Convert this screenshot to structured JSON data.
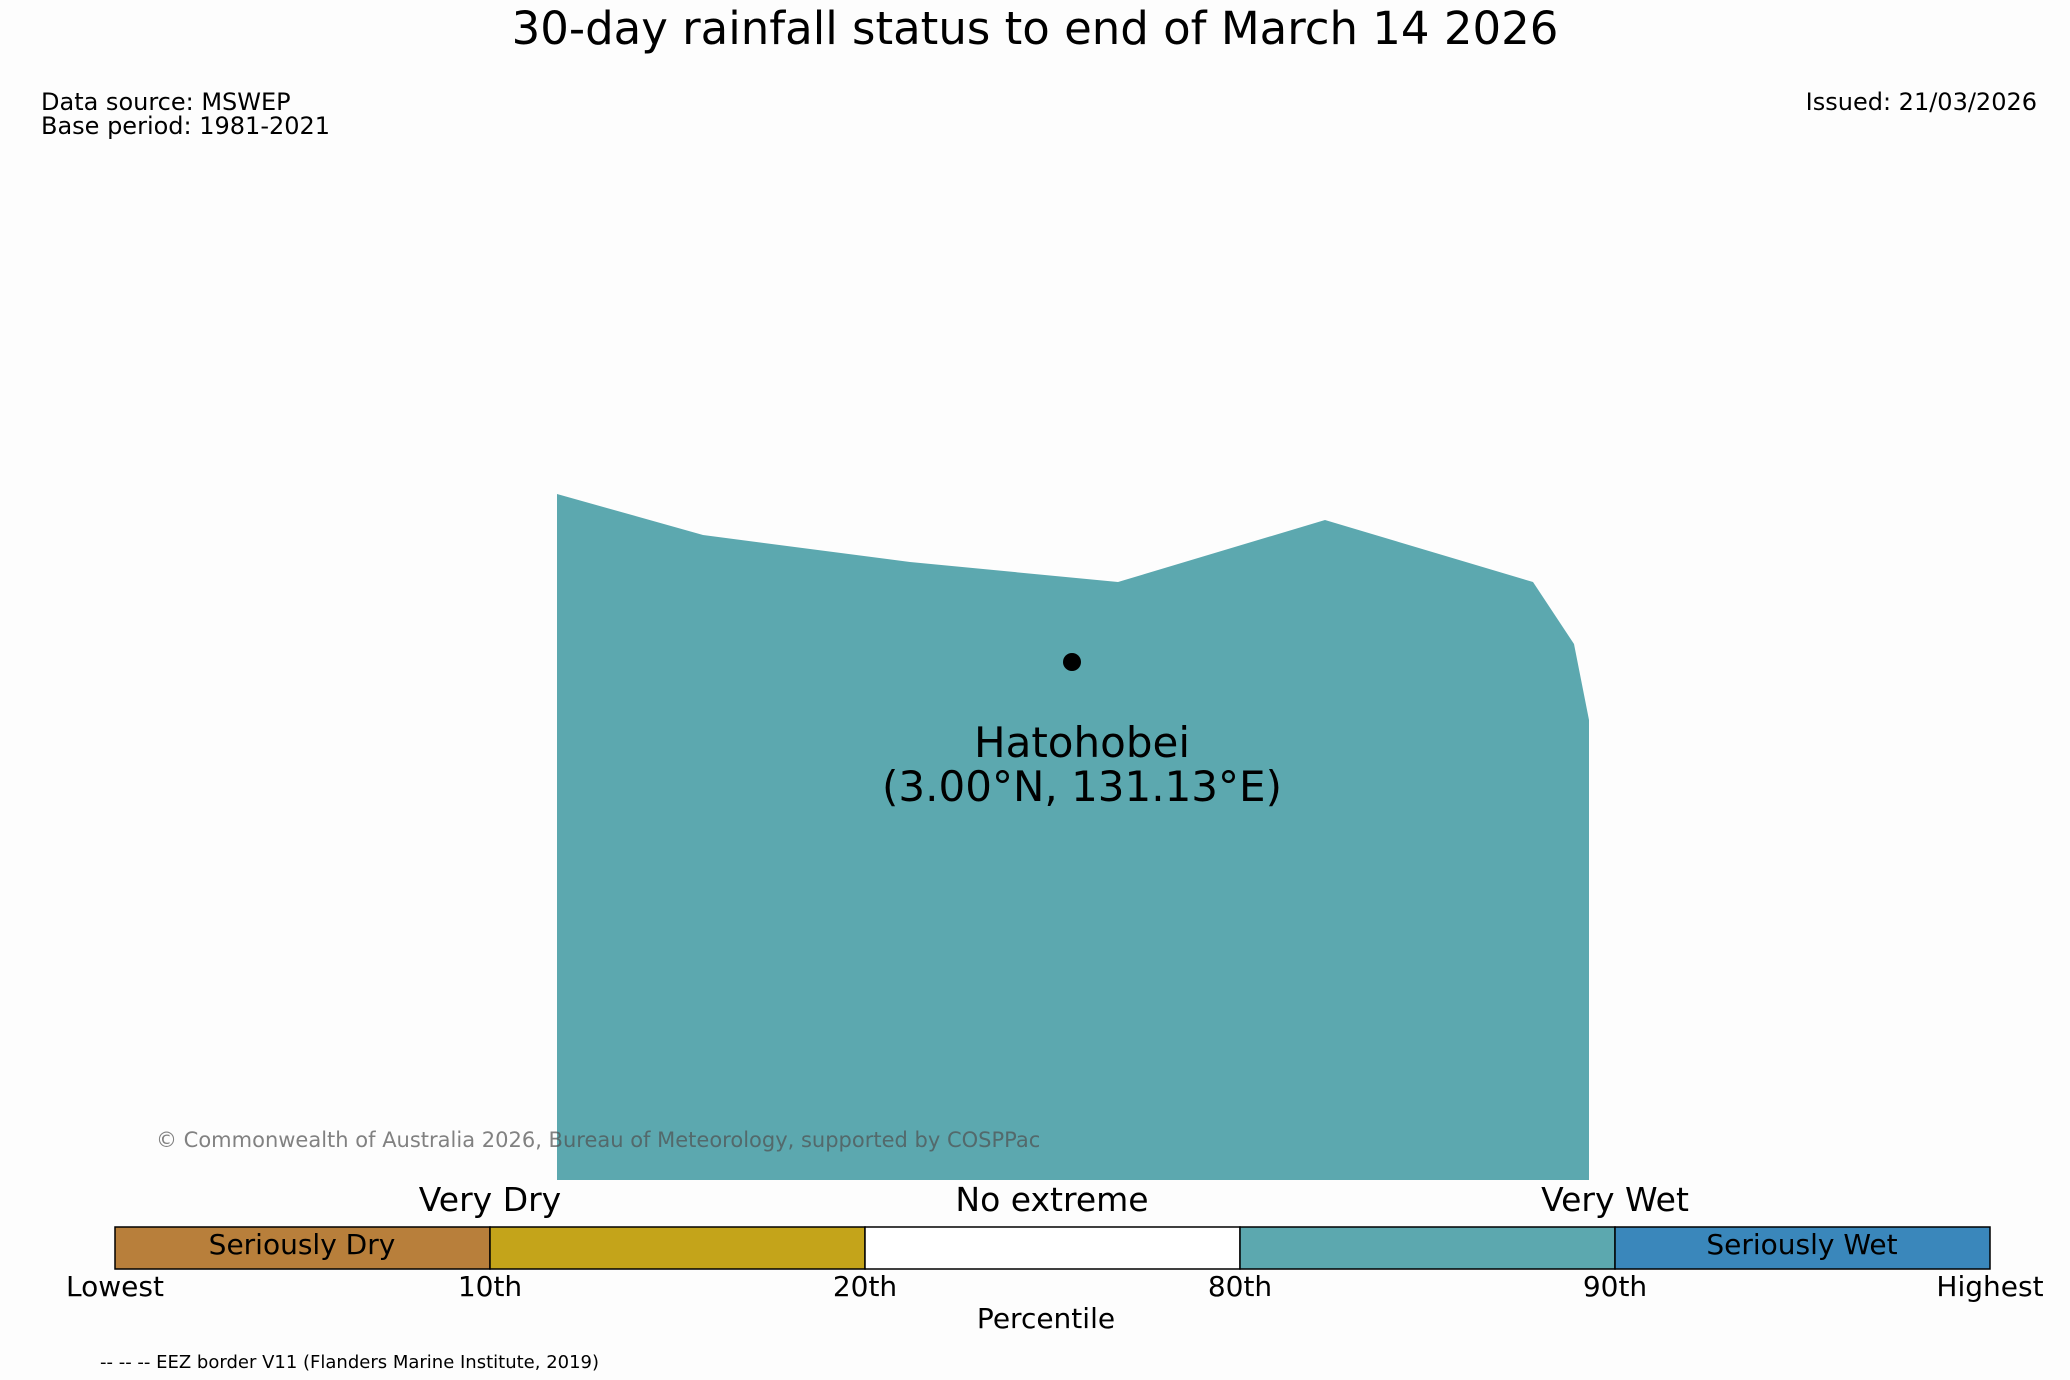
{
  "title": "30-day rainfall status to end of March 14 2026",
  "data_source": "Data source: MSWEP",
  "base_period": "Base period: 1981-2021",
  "issued": "Issued: 21/03/2026",
  "copyright": "© Commonwealth of Australia 2026, Bureau of Meteorology, supported by COSPPac",
  "eez_note": "-- -- -- EEZ border V11 (Flanders Marine Institute, 2019)",
  "location": {
    "name": "Hatohobei",
    "coords": "(3.00°N, 131.13°E)",
    "status_color": "#5ca8af"
  },
  "legend": {
    "categories": [
      "Very Dry",
      "No extreme",
      "Very Wet"
    ],
    "segments": [
      {
        "label": "Seriously Dry",
        "color": "#b87f3b"
      },
      {
        "label": "",
        "color": "#c4a41a"
      },
      {
        "label": "",
        "color": "#ffffff"
      },
      {
        "label": "",
        "color": "#5ca8af"
      },
      {
        "label": "Seriously Wet",
        "color": "#3a87bb"
      }
    ],
    "ticks": [
      "Lowest",
      "10th",
      "20th",
      "80th",
      "90th",
      "Highest"
    ],
    "xlabel": "Percentile"
  }
}
